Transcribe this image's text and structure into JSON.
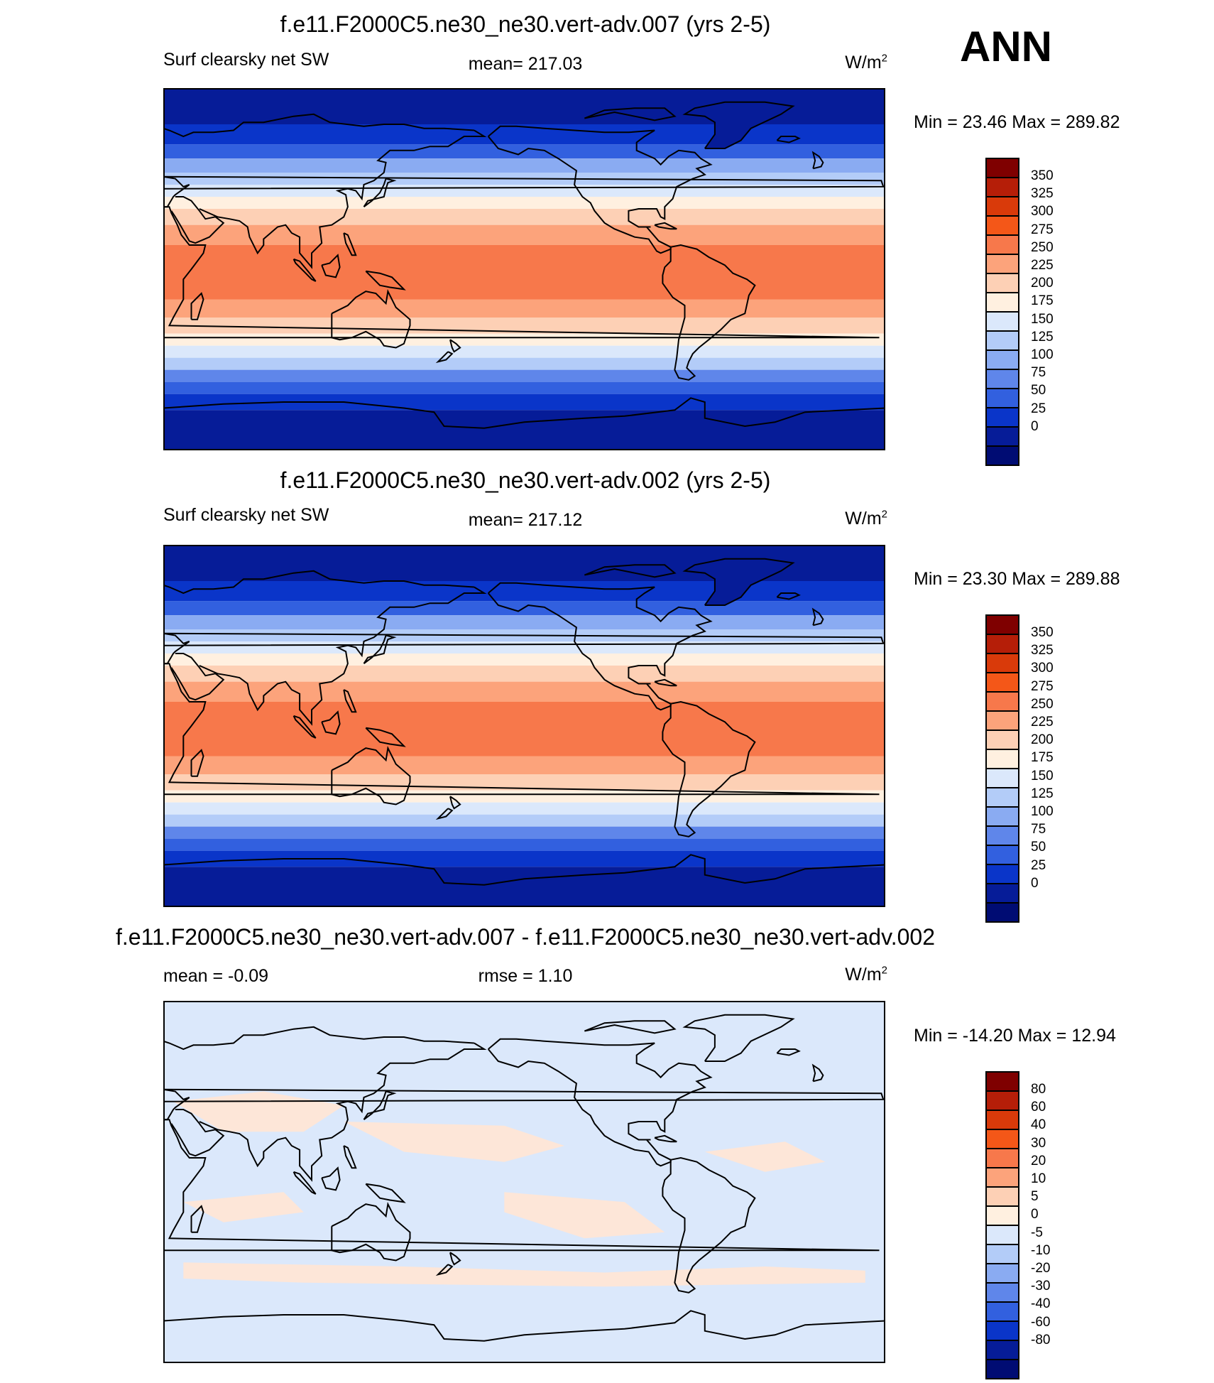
{
  "season": "ANN",
  "panels": [
    {
      "title": "f.e11.F2000C5.ne30_ne30.vert-adv.007 (yrs 2-5)",
      "left_label": "Surf clearsky net SW",
      "center_label": "mean= 217.03",
      "units": "W/m",
      "units_sup": "2",
      "minmax": "Min =  23.46 Max = 289.82",
      "stats": {
        "mean": 217.03,
        "min": 23.46,
        "max": 289.82
      },
      "colorbar": {
        "levels": [
          "350",
          "325",
          "300",
          "275",
          "250",
          "225",
          "200",
          "175",
          "150",
          "125",
          "100",
          "75",
          "50",
          "25",
          "0"
        ],
        "colors": [
          "#7f0000",
          "#b51e08",
          "#d93a0a",
          "#f45718",
          "#f7784b",
          "#fca37b",
          "#fdd0b5",
          "#fff0e0",
          "#dbe8fb",
          "#b3ccf8",
          "#8aabf2",
          "#5f86ea",
          "#3260df",
          "#0a35c9",
          "#061c98",
          "#000c73"
        ]
      }
    },
    {
      "title": "f.e11.F2000C5.ne30_ne30.vert-adv.002 (yrs 2-5)",
      "left_label": "Surf clearsky net SW",
      "center_label": "mean= 217.12",
      "units": "W/m",
      "units_sup": "2",
      "minmax": "Min =  23.30 Max = 289.88",
      "stats": {
        "mean": 217.12,
        "min": 23.3,
        "max": 289.88
      },
      "colorbar": {
        "levels": [
          "350",
          "325",
          "300",
          "275",
          "250",
          "225",
          "200",
          "175",
          "150",
          "125",
          "100",
          "75",
          "50",
          "25",
          "0"
        ],
        "colors": [
          "#7f0000",
          "#b51e08",
          "#d93a0a",
          "#f45718",
          "#f7784b",
          "#fca37b",
          "#fdd0b5",
          "#fff0e0",
          "#dbe8fb",
          "#b3ccf8",
          "#8aabf2",
          "#5f86ea",
          "#3260df",
          "#0a35c9",
          "#061c98",
          "#000c73"
        ]
      }
    },
    {
      "title": "f.e11.F2000C5.ne30_ne30.vert-adv.007 - f.e11.F2000C5.ne30_ne30.vert-adv.002",
      "left_label": "mean =  -0.09",
      "center_label": "rmse =   1.10",
      "units": "W/m",
      "units_sup": "2",
      "minmax": "Min = -14.20 Max =  12.94",
      "stats": {
        "mean": -0.09,
        "rmse": 1.1,
        "min": -14.2,
        "max": 12.94
      },
      "colorbar": {
        "levels": [
          "80",
          "60",
          "40",
          "30",
          "20",
          "10",
          "5",
          "0",
          "-5",
          "-10",
          "-20",
          "-30",
          "-40",
          "-60",
          "-80"
        ],
        "colors": [
          "#7f0000",
          "#b51e08",
          "#d93a0a",
          "#f45718",
          "#f7784b",
          "#fca37b",
          "#fdd0b5",
          "#fff0e0",
          "#dbe8fb",
          "#b3ccf8",
          "#8aabf2",
          "#5f86ea",
          "#3260df",
          "#0a35c9",
          "#061c98",
          "#000c73"
        ]
      }
    }
  ]
}
